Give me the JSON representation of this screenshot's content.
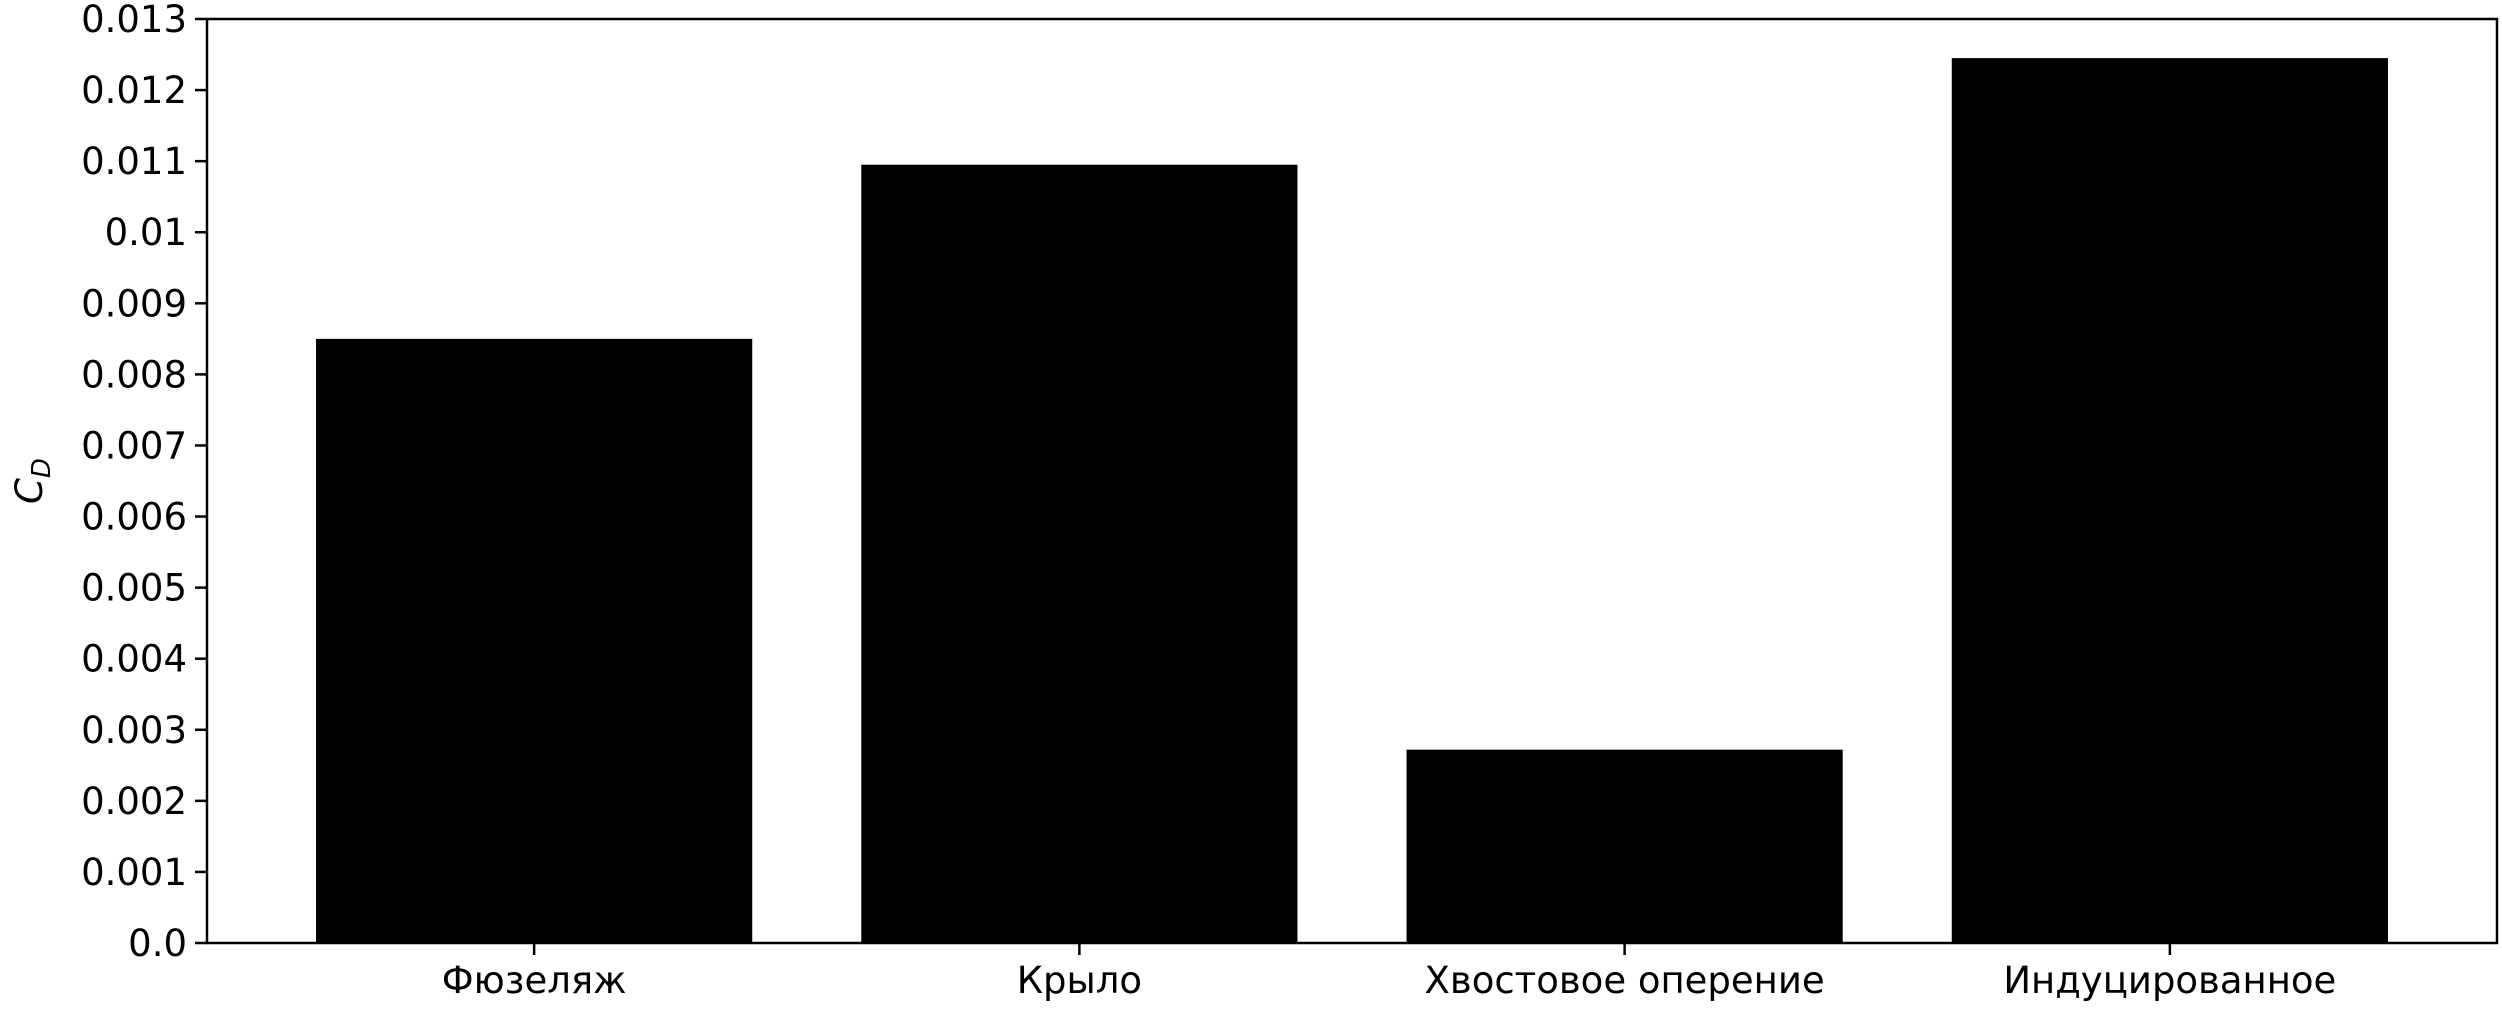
{
  "chart_data": {
    "type": "bar",
    "categories": [
      "Фюзеляж",
      "Крыло",
      "Хвостовое оперение",
      "Индуцированное"
    ],
    "values": [
      0.0085,
      0.01095,
      0.00272,
      0.01245
    ],
    "ylabel": {
      "main": "C",
      "sub": "D"
    },
    "ylim": [
      0,
      0.013
    ],
    "yticks": [
      "0.0",
      "0.001",
      "0.002",
      "0.003",
      "0.004",
      "0.005",
      "0.006",
      "0.007",
      "0.008",
      "0.009",
      "0.01",
      "0.011",
      "0.012",
      "0.013"
    ],
    "grid": false,
    "bar_color": "#000000"
  }
}
